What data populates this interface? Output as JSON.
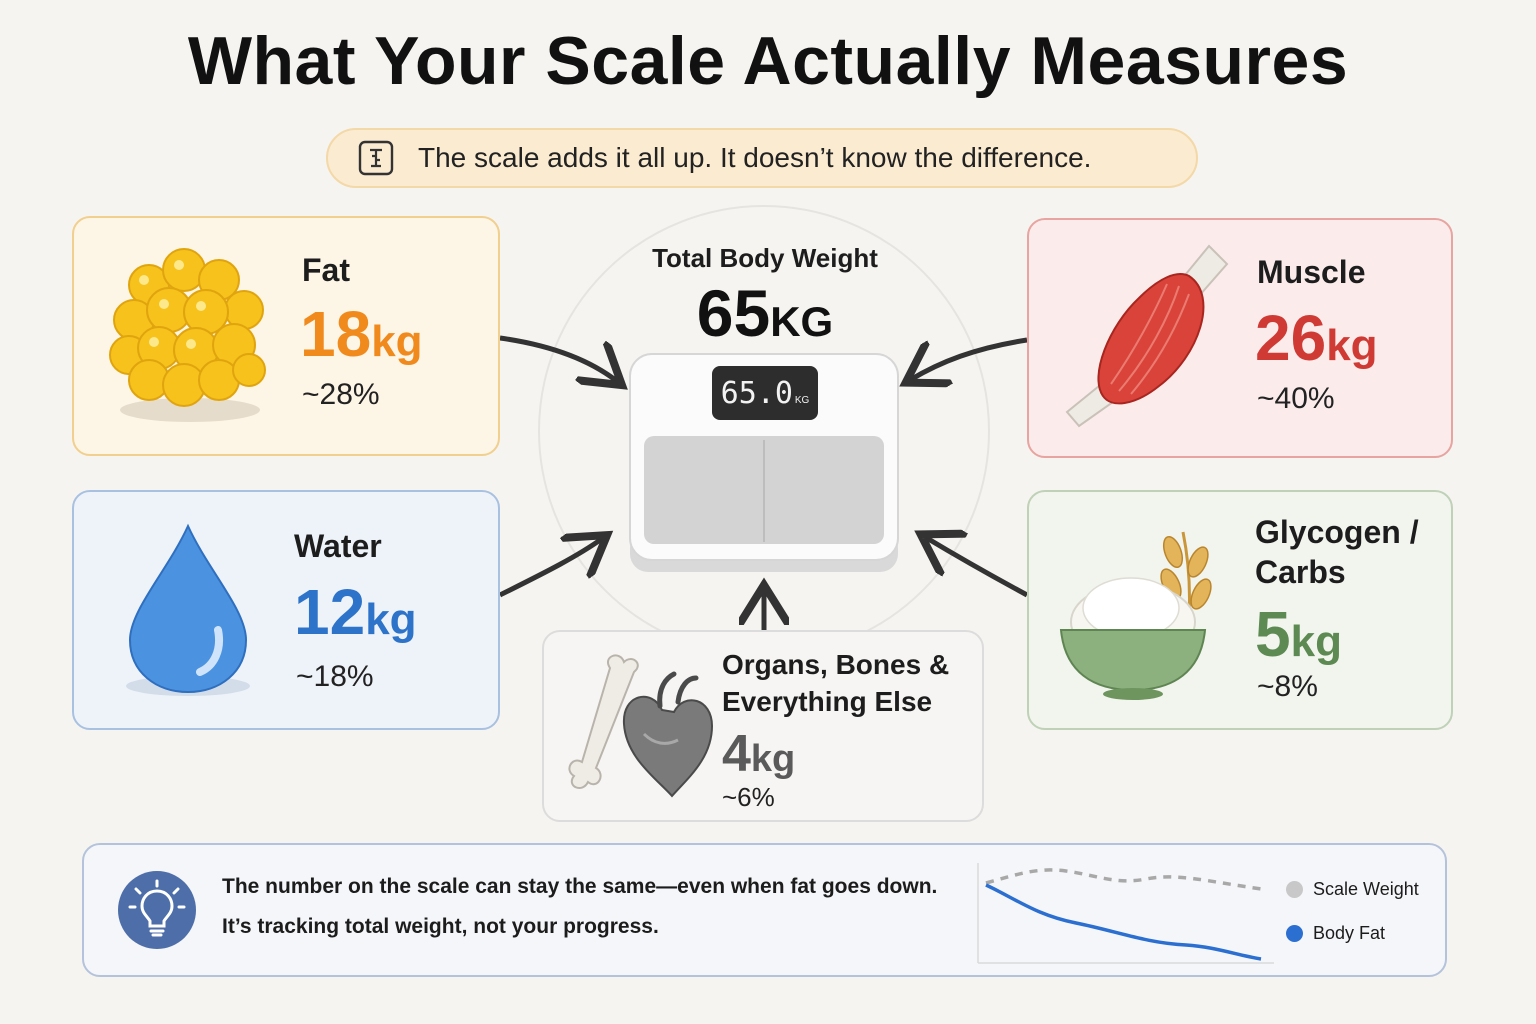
{
  "title": "What Your Scale Actually Measures",
  "banner": {
    "icon": "scale-icon",
    "text": "The scale adds it all up. It doesn’t know the difference."
  },
  "center": {
    "label": "Total Body Weight",
    "value": "65",
    "unit": "KG",
    "display_value": "65.0",
    "display_unit": "KG"
  },
  "components": {
    "fat": {
      "name": "Fat",
      "value": "18",
      "unit": "kg",
      "percent": "~28%",
      "color": "#f08a1c",
      "icon": "fat-cells-icon"
    },
    "muscle": {
      "name": "Muscle",
      "value": "26",
      "unit": "kg",
      "percent": "~40%",
      "color": "#cf3b34",
      "icon": "muscle-icon"
    },
    "water": {
      "name": "Water",
      "value": "12",
      "unit": "kg",
      "percent": "~18%",
      "color": "#2d73c9",
      "icon": "water-drop-icon"
    },
    "glycogen": {
      "name_line1": "Glycogen /",
      "name_line2": "Carbs",
      "value": "5",
      "unit": "kg",
      "percent": "~8%",
      "color": "#5d8a52",
      "icon": "rice-bowl-icon"
    },
    "organs": {
      "name_line1": "Organs, Bones &",
      "name_line2": "Everything Else",
      "value": "4",
      "unit": "kg",
      "percent": "~6%",
      "color": "#5a5a5a",
      "icon": "bone-heart-icon"
    }
  },
  "footer": {
    "icon": "lightbulb-icon",
    "line1": "The number on the scale can stay the same—even when fat goes down.",
    "line2": "It’s tracking total weight, not your progress.",
    "legend": [
      {
        "label": "Scale Weight",
        "color": "#c8c8c8"
      },
      {
        "label": "Body Fat",
        "color": "#2b6fd1"
      }
    ]
  }
}
